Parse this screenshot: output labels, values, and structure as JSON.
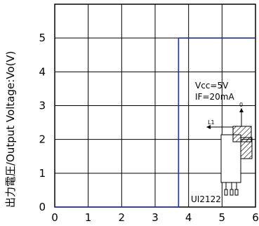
{
  "chart_data": {
    "type": "line",
    "ylabel": "出力電圧/Output Voltage:Vo(V)",
    "xlabel": "",
    "title": "",
    "xlim": [
      0,
      6
    ],
    "ylim": [
      0,
      6
    ],
    "x_ticks": [
      "0",
      "1",
      "2",
      "3",
      "4",
      "5",
      "6"
    ],
    "y_ticks": [
      "0",
      "1",
      "2",
      "3",
      "4",
      "5"
    ],
    "grid": true,
    "series": [
      {
        "color": "#1f2fb0",
        "x": [
          0,
          3.7,
          3.7,
          6
        ],
        "y": [
          0,
          0,
          5,
          5
        ]
      }
    ],
    "annotations": {
      "vcc": "Vcc=5V",
      "if": "IF=20mA",
      "part": "UI2122",
      "l1_label": "L1",
      "o_label": "0"
    }
  }
}
